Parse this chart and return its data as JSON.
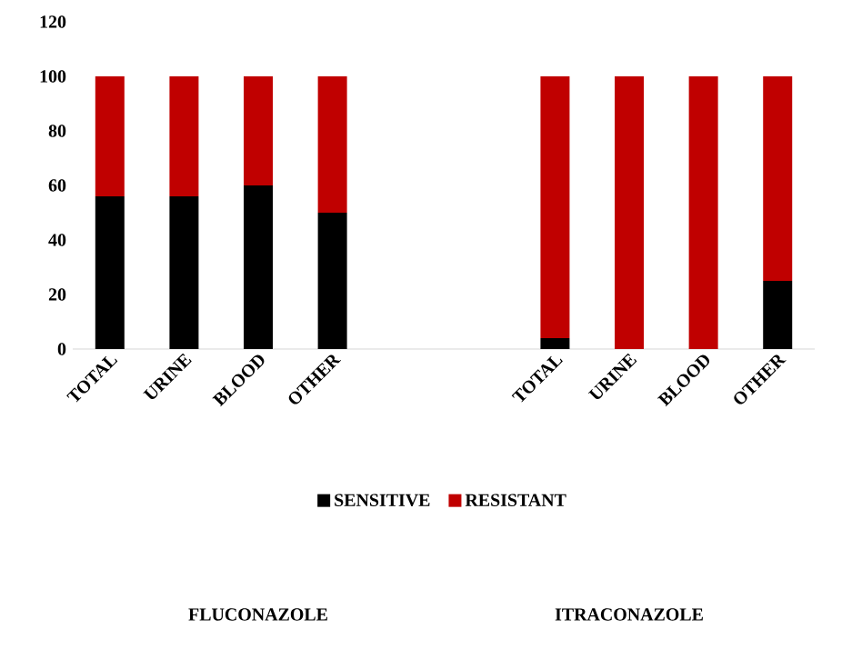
{
  "chart_data": {
    "type": "bar",
    "stacked": true,
    "categories": [
      "TOTAL",
      "URINE",
      "BLOOD",
      "OTHER",
      null,
      null,
      "TOTAL",
      "URINE",
      "BLOOD",
      "OTHER"
    ],
    "series": [
      {
        "name": "SENSITIVE",
        "color": "#000000",
        "values": [
          56,
          56,
          60,
          50,
          null,
          null,
          4,
          0,
          0,
          25
        ]
      },
      {
        "name": "RESISTANT",
        "color": "#c00000",
        "values": [
          44,
          44,
          40,
          50,
          null,
          null,
          96,
          100,
          100,
          75
        ]
      }
    ],
    "ylim": [
      0,
      120
    ],
    "yticks": [
      0,
      20,
      40,
      60,
      80,
      100,
      120
    ],
    "grid": false,
    "legend": "bottom",
    "annotations": [
      "FLUCONAZOLE",
      "ITRACONAZOLE"
    ]
  }
}
